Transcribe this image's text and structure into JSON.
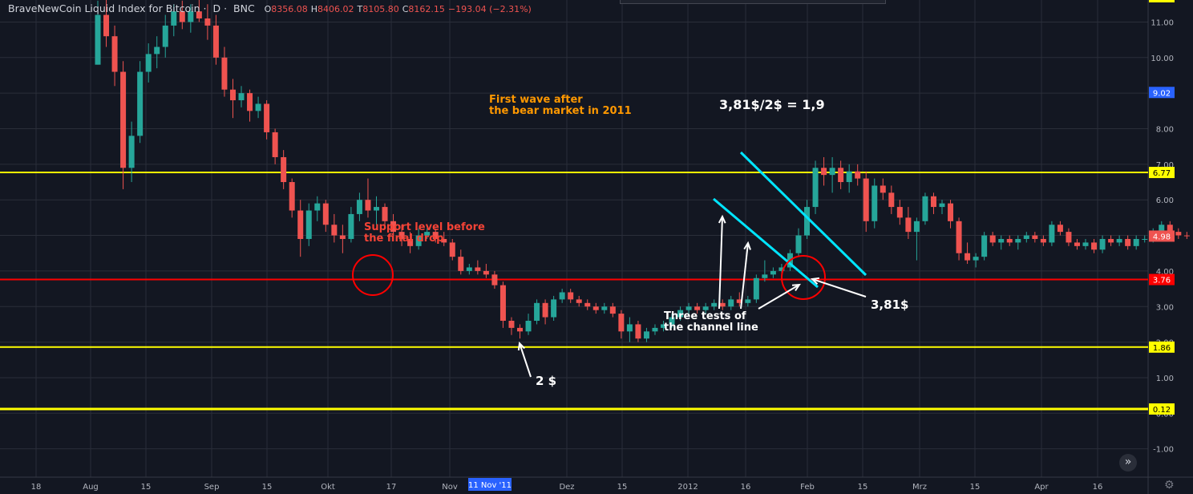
{
  "header": {
    "symbol": "BraveNewCoin Liquid Index for Bitcoin",
    "interval": "D",
    "exchange": "BNC",
    "o_label": "O",
    "o": "8356.08",
    "h_label": "H",
    "h": "8406.02",
    "l_label": "T",
    "l": "8105.80",
    "c_label": "C",
    "c": "8162.15",
    "change": "−193.04 (−2.31%)"
  },
  "chart_data": {
    "type": "candlestick",
    "y_ticks": [
      "11.00",
      "10.00",
      "9.00",
      "8.00",
      "7.00",
      "6.00",
      "5.00",
      "4.00",
      "3.00",
      "2.00",
      "1.00",
      "0.00",
      "-1.00"
    ],
    "x_ticks": [
      "18",
      "Aug",
      "15",
      "Sep",
      "15",
      "Okt",
      "17",
      "Nov",
      "Dez",
      "15",
      "2012",
      "16",
      "Feb",
      "15",
      "Mrz",
      "15",
      "Apr",
      "16"
    ],
    "crosshair_date": "11 Nov '11",
    "price_labels": [
      {
        "value": 9.02,
        "text": "9.02",
        "bg": "#2962ff",
        "fg": "#ffffff"
      },
      {
        "value": 6.77,
        "text": "6.77",
        "bg": "#ffff00",
        "fg": "#000000"
      },
      {
        "value": 4.98,
        "text": "4.98",
        "bg": "#ef5350",
        "fg": "#ffffff"
      },
      {
        "value": 3.76,
        "text": "3.76",
        "bg": "#ff0000",
        "fg": "#ffffff"
      },
      {
        "value": 1.86,
        "text": "1.86",
        "bg": "#ffff00",
        "fg": "#000000"
      },
      {
        "value": 0.12,
        "text": "0.12",
        "bg": "#ffff00",
        "fg": "#000000"
      }
    ],
    "hlines": [
      {
        "value": 6.77,
        "color": "#ffff00",
        "width": 2
      },
      {
        "value": 3.76,
        "color": "#ff0000",
        "width": 2
      },
      {
        "value": 1.86,
        "color": "#ffff00",
        "width": 2
      },
      {
        "value": 0.12,
        "color": "#ffff00",
        "width": 3
      }
    ],
    "candles": [
      [
        0,
        9.8,
        11.6,
        9.8,
        11.2
      ],
      [
        1,
        11.2,
        11.7,
        10.3,
        10.6
      ],
      [
        2,
        10.6,
        10.9,
        9.2,
        9.6
      ],
      [
        3,
        9.6,
        9.9,
        6.3,
        6.9
      ],
      [
        4,
        6.9,
        8.2,
        6.5,
        7.8
      ],
      [
        5,
        7.8,
        9.9,
        7.6,
        9.6
      ],
      [
        6,
        9.6,
        10.4,
        9.3,
        10.1
      ],
      [
        7,
        10.1,
        10.6,
        9.7,
        10.3
      ],
      [
        8,
        10.3,
        11.2,
        10.0,
        10.9
      ],
      [
        9,
        10.9,
        11.5,
        10.6,
        11.3
      ],
      [
        10,
        11.3,
        11.6,
        10.8,
        11.0
      ],
      [
        11,
        11.0,
        11.5,
        10.7,
        11.3
      ],
      [
        12,
        11.3,
        11.8,
        11.0,
        11.1
      ],
      [
        13,
        11.1,
        11.5,
        10.5,
        10.9
      ],
      [
        14,
        10.9,
        11.2,
        9.8,
        10.0
      ],
      [
        15,
        10.0,
        10.3,
        8.9,
        9.1
      ],
      [
        16,
        9.1,
        9.4,
        8.3,
        8.8
      ],
      [
        17,
        8.8,
        9.2,
        8.6,
        9.0
      ],
      [
        18,
        9.0,
        9.1,
        8.2,
        8.5
      ],
      [
        19,
        8.5,
        8.9,
        8.3,
        8.7
      ],
      [
        20,
        8.7,
        8.8,
        7.7,
        7.9
      ],
      [
        21,
        7.9,
        8.0,
        7.0,
        7.2
      ],
      [
        22,
        7.2,
        7.4,
        6.3,
        6.5
      ],
      [
        23,
        6.5,
        6.6,
        5.5,
        5.7
      ],
      [
        24,
        5.7,
        6.0,
        4.4,
        4.9
      ],
      [
        25,
        4.9,
        5.9,
        4.7,
        5.7
      ],
      [
        26,
        5.7,
        6.1,
        5.4,
        5.9
      ],
      [
        27,
        5.9,
        6.0,
        5.1,
        5.3
      ],
      [
        28,
        5.3,
        5.6,
        4.8,
        5.0
      ],
      [
        29,
        5.0,
        5.3,
        4.5,
        4.9
      ],
      [
        30,
        4.9,
        5.8,
        4.8,
        5.6
      ],
      [
        31,
        5.6,
        6.2,
        5.4,
        6.0
      ],
      [
        32,
        6.0,
        6.6,
        5.5,
        5.7
      ],
      [
        33,
        5.7,
        6.1,
        5.3,
        5.8
      ],
      [
        34,
        5.8,
        5.9,
        5.2,
        5.4
      ],
      [
        35,
        5.4,
        5.6,
        4.9,
        5.1
      ],
      [
        36,
        5.1,
        5.3,
        4.7,
        4.9
      ],
      [
        37,
        4.9,
        5.1,
        4.5,
        4.7
      ],
      [
        38,
        4.7,
        5.2,
        4.6,
        5.0
      ],
      [
        39,
        5.0,
        5.2,
        4.9,
        5.1
      ],
      [
        40,
        5.1,
        5.2,
        4.8,
        4.9
      ],
      [
        41,
        4.9,
        5.1,
        4.7,
        4.8
      ],
      [
        42,
        4.8,
        4.9,
        4.3,
        4.4
      ],
      [
        43,
        4.4,
        4.6,
        3.9,
        4.0
      ],
      [
        44,
        4.0,
        4.2,
        3.9,
        4.1
      ],
      [
        45,
        4.1,
        4.3,
        3.9,
        4.0
      ],
      [
        46,
        4.0,
        4.2,
        3.8,
        3.9
      ],
      [
        47,
        3.9,
        4.0,
        3.5,
        3.6
      ],
      [
        48,
        3.6,
        3.7,
        2.4,
        2.6
      ],
      [
        49,
        2.6,
        2.7,
        2.2,
        2.4
      ],
      [
        50,
        2.4,
        2.5,
        2.1,
        2.3
      ],
      [
        51,
        2.3,
        2.8,
        2.2,
        2.6
      ],
      [
        52,
        2.6,
        3.2,
        2.5,
        3.1
      ],
      [
        53,
        3.1,
        3.2,
        2.5,
        2.7
      ],
      [
        54,
        2.7,
        3.3,
        2.6,
        3.2
      ],
      [
        55,
        3.2,
        3.5,
        3.1,
        3.4
      ],
      [
        56,
        3.4,
        3.5,
        3.1,
        3.2
      ],
      [
        57,
        3.2,
        3.3,
        3.0,
        3.1
      ],
      [
        58,
        3.1,
        3.2,
        2.9,
        3.0
      ],
      [
        59,
        3.0,
        3.1,
        2.8,
        2.9
      ],
      [
        60,
        2.9,
        3.1,
        2.8,
        3.0
      ],
      [
        61,
        3.0,
        3.1,
        2.7,
        2.8
      ],
      [
        62,
        2.8,
        2.9,
        2.1,
        2.3
      ],
      [
        63,
        2.3,
        2.7,
        2.0,
        2.5
      ],
      [
        64,
        2.5,
        2.6,
        2.0,
        2.1
      ],
      [
        65,
        2.1,
        2.4,
        2.0,
        2.3
      ],
      [
        66,
        2.3,
        2.5,
        2.2,
        2.4
      ],
      [
        67,
        2.4,
        2.6,
        2.3,
        2.5
      ],
      [
        68,
        2.5,
        2.8,
        2.4,
        2.7
      ],
      [
        69,
        2.7,
        3.0,
        2.6,
        2.9
      ],
      [
        70,
        2.9,
        3.1,
        2.8,
        3.0
      ],
      [
        71,
        3.0,
        3.1,
        2.8,
        2.9
      ],
      [
        72,
        2.9,
        3.1,
        2.8,
        3.0
      ],
      [
        73,
        3.0,
        3.2,
        2.9,
        3.1
      ],
      [
        74,
        3.1,
        3.2,
        2.9,
        3.0
      ],
      [
        75,
        3.0,
        3.3,
        2.9,
        3.2
      ],
      [
        76,
        3.2,
        3.4,
        3.0,
        3.1
      ],
      [
        77,
        3.1,
        3.3,
        3.0,
        3.2
      ],
      [
        78,
        3.2,
        3.9,
        3.1,
        3.8
      ],
      [
        79,
        3.8,
        4.3,
        3.7,
        3.9
      ],
      [
        80,
        3.9,
        4.1,
        3.8,
        4.0
      ],
      [
        81,
        4.0,
        4.2,
        3.8,
        4.1
      ],
      [
        82,
        4.1,
        4.6,
        4.0,
        4.5
      ],
      [
        83,
        4.5,
        5.2,
        4.4,
        5.0
      ],
      [
        84,
        5.0,
        6.0,
        4.9,
        5.8
      ],
      [
        85,
        5.8,
        7.1,
        5.6,
        6.9
      ],
      [
        86,
        6.9,
        7.2,
        6.4,
        6.7
      ],
      [
        87,
        6.7,
        7.2,
        6.2,
        6.9
      ],
      [
        88,
        6.9,
        7.1,
        6.3,
        6.5
      ],
      [
        89,
        6.5,
        7.0,
        6.2,
        6.8
      ],
      [
        90,
        6.8,
        7.0,
        6.4,
        6.6
      ],
      [
        91,
        6.6,
        6.8,
        5.1,
        5.4
      ],
      [
        92,
        5.4,
        6.6,
        5.2,
        6.4
      ],
      [
        93,
        6.4,
        6.6,
        6.0,
        6.2
      ],
      [
        94,
        6.2,
        6.4,
        5.6,
        5.8
      ],
      [
        95,
        5.8,
        6.0,
        5.3,
        5.5
      ],
      [
        96,
        5.5,
        5.8,
        4.9,
        5.1
      ],
      [
        97,
        5.1,
        5.5,
        4.3,
        5.4
      ],
      [
        98,
        5.4,
        6.2,
        5.3,
        6.1
      ],
      [
        99,
        6.1,
        6.2,
        5.6,
        5.8
      ],
      [
        100,
        5.8,
        6.0,
        5.6,
        5.9
      ],
      [
        101,
        5.9,
        6.0,
        5.2,
        5.4
      ],
      [
        102,
        5.4,
        5.5,
        4.3,
        4.5
      ],
      [
        103,
        4.5,
        4.8,
        4.2,
        4.3
      ],
      [
        104,
        4.3,
        4.5,
        4.1,
        4.4
      ],
      [
        105,
        4.4,
        5.1,
        4.3,
        5.0
      ],
      [
        106,
        5.0,
        5.1,
        4.7,
        4.8
      ],
      [
        107,
        4.8,
        5.0,
        4.6,
        4.9
      ],
      [
        108,
        4.9,
        5.0,
        4.7,
        4.8
      ],
      [
        109,
        4.8,
        5.0,
        4.6,
        4.9
      ],
      [
        110,
        4.9,
        5.1,
        4.8,
        5.0
      ],
      [
        111,
        5.0,
        5.1,
        4.8,
        4.9
      ],
      [
        112,
        4.9,
        5.0,
        4.7,
        4.8
      ],
      [
        113,
        4.8,
        5.4,
        4.7,
        5.3
      ],
      [
        114,
        5.3,
        5.4,
        5.0,
        5.1
      ],
      [
        115,
        5.1,
        5.2,
        4.7,
        4.8
      ],
      [
        116,
        4.8,
        4.9,
        4.6,
        4.7
      ],
      [
        117,
        4.7,
        4.9,
        4.6,
        4.8
      ],
      [
        118,
        4.8,
        4.9,
        4.5,
        4.6
      ],
      [
        119,
        4.6,
        5.0,
        4.5,
        4.9
      ],
      [
        120,
        4.9,
        5.0,
        4.7,
        4.8
      ],
      [
        121,
        4.8,
        5.0,
        4.7,
        4.9
      ],
      [
        122,
        4.9,
        5.0,
        4.6,
        4.7
      ],
      [
        123,
        4.7,
        5.0,
        4.6,
        4.9
      ],
      [
        124,
        4.9,
        5.0,
        4.8,
        4.9
      ],
      [
        125,
        4.9,
        5.2,
        4.8,
        5.1
      ],
      [
        126,
        5.1,
        5.4,
        5.0,
        5.3
      ],
      [
        127,
        5.3,
        5.4,
        5.0,
        5.1
      ],
      [
        128,
        5.1,
        5.2,
        4.9,
        5.0
      ],
      [
        129,
        5.0,
        5.1,
        4.9,
        4.98
      ]
    ],
    "annotations": {
      "first_wave_1": "First wave after",
      "first_wave_2": "the bear market in 2011",
      "ratio": "3,81$/2$ = 1,9",
      "support_1": "Support level before",
      "support_2": "the final drop",
      "two_dollar": "2 $",
      "three_tests_1": "Three tests of",
      "three_tests_2": "the channel line",
      "price_381": "3,81$"
    },
    "colors": {
      "up": "#26a69a",
      "down": "#ef5350",
      "channel": "#00e5ff",
      "support_text": "#f44336",
      "wave_text": "#ff9800",
      "grid": "#2a2e39"
    }
  },
  "ui": {
    "scroll_icon": "double-chevron-right-icon",
    "settings_icon": "gear-icon"
  }
}
